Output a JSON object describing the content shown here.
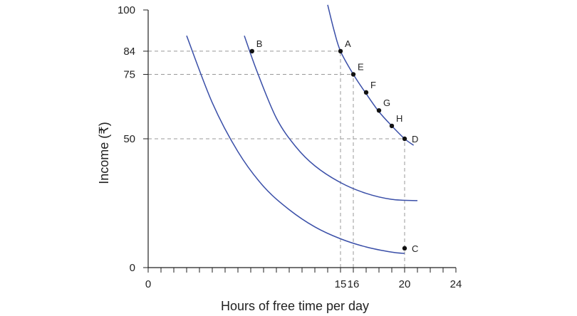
{
  "chart_data": {
    "type": "line",
    "title": "",
    "xlabel": "Hours of free time per day",
    "ylabel": "Income (₹)",
    "xlim": [
      0,
      24
    ],
    "ylim": [
      0,
      100
    ],
    "x_tick_labels": [
      {
        "value": 0,
        "label": "0"
      },
      {
        "value": 15,
        "label": "15"
      },
      {
        "value": 16,
        "label": "16"
      },
      {
        "value": 20,
        "label": "20"
      },
      {
        "value": 24,
        "label": "24"
      }
    ],
    "y_tick_labels": [
      {
        "value": 0,
        "label": "0"
      },
      {
        "value": 50,
        "label": "50"
      },
      {
        "value": 75,
        "label": "75"
      },
      {
        "value": 84,
        "label": "84"
      },
      {
        "value": 100,
        "label": "100"
      }
    ],
    "minor_x_ticks": 1,
    "curve_color": "#3a4fa8",
    "guide_color": "#999999",
    "point_color": "#111111",
    "series": [
      {
        "name": "indifference-curve-low",
        "x": [
          3,
          5,
          7,
          9,
          11,
          13,
          15,
          17,
          19,
          20
        ],
        "y": [
          90,
          64,
          45,
          31.5,
          22.5,
          15.8,
          11.2,
          8,
          6,
          5.5
        ]
      },
      {
        "name": "indifference-curve-middle",
        "x": [
          7.5,
          8.5,
          10,
          11.5,
          13,
          15,
          17,
          19,
          21
        ],
        "y": [
          90,
          76,
          58,
          47,
          39.5,
          33,
          28.8,
          26.5,
          26
        ]
      },
      {
        "name": "indifference-curve-high",
        "x": [
          14,
          14.5,
          15,
          16,
          17,
          18,
          19,
          20,
          20.7
        ],
        "y": [
          102,
          92,
          84,
          75,
          67.5,
          60.5,
          55,
          50,
          47.5
        ]
      }
    ],
    "points": [
      {
        "label": "A",
        "x": 15,
        "y": 84
      },
      {
        "label": "B",
        "x": 8.1,
        "y": 84
      },
      {
        "label": "C",
        "x": 20,
        "y": 7.5
      },
      {
        "label": "D",
        "x": 20,
        "y": 50
      },
      {
        "label": "E",
        "x": 16,
        "y": 75
      },
      {
        "label": "F",
        "x": 17,
        "y": 68
      },
      {
        "label": "G",
        "x": 18,
        "y": 61
      },
      {
        "label": "H",
        "x": 19,
        "y": 55
      }
    ],
    "guide_lines": [
      {
        "name": "guide-h-84",
        "from": [
          0,
          84
        ],
        "to": [
          15,
          84
        ]
      },
      {
        "name": "guide-h-75",
        "from": [
          0,
          75
        ],
        "to": [
          16,
          75
        ]
      },
      {
        "name": "guide-h-50",
        "from": [
          0,
          50
        ],
        "to": [
          20,
          50
        ]
      },
      {
        "name": "guide-v-15",
        "from": [
          15,
          0
        ],
        "to": [
          15,
          84
        ]
      },
      {
        "name": "guide-v-16",
        "from": [
          16,
          0
        ],
        "to": [
          16,
          75
        ]
      },
      {
        "name": "guide-v-20",
        "from": [
          20,
          0
        ],
        "to": [
          20,
          50
        ]
      }
    ]
  }
}
